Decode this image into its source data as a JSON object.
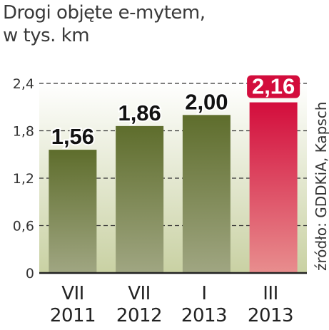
{
  "chart_data": {
    "type": "bar",
    "title": "Drogi objęte e-mytem,",
    "subtitle": "w tys. km",
    "categories": [
      {
        "line1": "VII",
        "line2": "2011"
      },
      {
        "line1": "VII",
        "line2": "2012"
      },
      {
        "line1": "I",
        "line2": "2013"
      },
      {
        "line1": "III",
        "line2": "2013"
      }
    ],
    "values": [
      1.56,
      1.86,
      2.0,
      2.16
    ],
    "value_labels": [
      "1,56",
      "1,86",
      "2,00",
      "2,16"
    ],
    "yticks": [
      "0",
      "0,6",
      "1,2",
      "1,8",
      "2,4"
    ],
    "ytick_values": [
      0,
      0.6,
      1.2,
      1.8,
      2.4
    ],
    "ylim": [
      0,
      2.4
    ],
    "grid": true,
    "source": "źródło: GDDKiA, Kapsch",
    "colors": {
      "bar_top": "#5e6d2c",
      "bar_bottom": "#a0a682",
      "highlight_top": "#d30d3c",
      "highlight_bottom": "#e88e8e",
      "background_top": "#ffffff",
      "background_bottom": "#c9d1a3"
    },
    "highlight_index": 3
  }
}
